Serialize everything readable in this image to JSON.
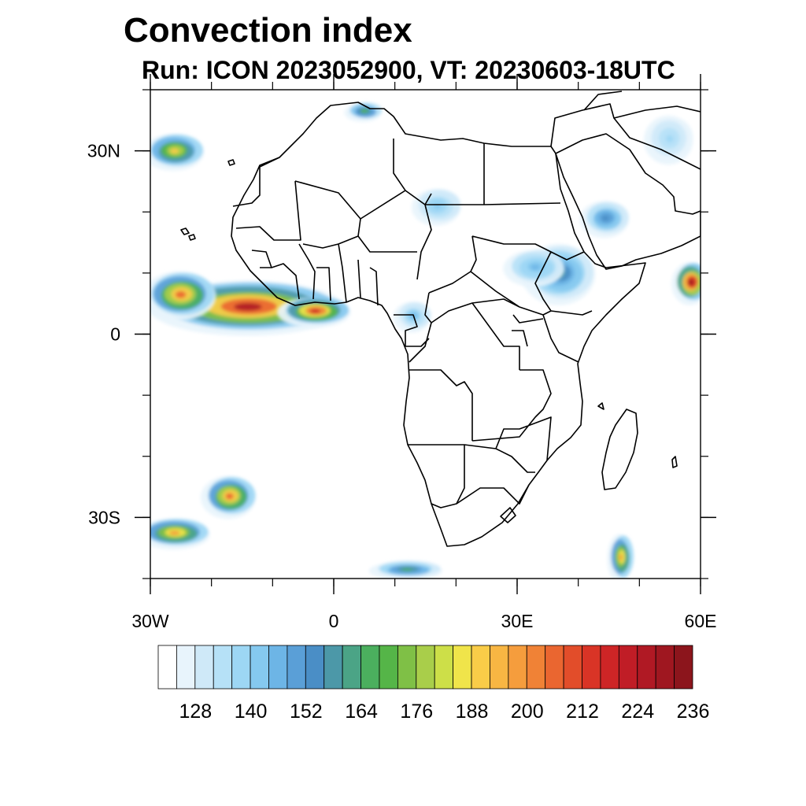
{
  "title": "Convection index",
  "subtitle": "Run: ICON 2023052900,  VT: 20230603-18UTC",
  "map": {
    "projection": "equirectangular",
    "lon_range": [
      -30,
      60
    ],
    "lat_range": [
      -40,
      40
    ],
    "lon_ticks": [
      {
        "value": -30,
        "label": "30W"
      },
      {
        "value": 0,
        "label": "0"
      },
      {
        "value": 30,
        "label": "30E"
      },
      {
        "value": 60,
        "label": "60E"
      }
    ],
    "lat_ticks": [
      {
        "value": 30,
        "label": "30N"
      },
      {
        "value": 0,
        "label": "0"
      },
      {
        "value": -30,
        "label": "30S"
      }
    ],
    "field_blobs": [
      {
        "name": "atlantic-itcz",
        "lon": -14,
        "lat": 4.5,
        "rlon": 16,
        "rlat": 4.5,
        "peak": 200
      },
      {
        "name": "atlantic-itcz-west",
        "lon": -25,
        "lat": 6.5,
        "rlon": 6,
        "rlat": 4,
        "peak": 185
      },
      {
        "name": "gulf-of-guinea",
        "lon": -3,
        "lat": 3.8,
        "rlon": 6,
        "rlat": 2.5,
        "peak": 195
      },
      {
        "name": "canary-region",
        "lon": -26,
        "lat": 30,
        "rlon": 5,
        "rlat": 3,
        "peak": 175
      },
      {
        "name": "south-atlantic-front",
        "lon": -17,
        "lat": -26.5,
        "rlon": 4.5,
        "rlat": 3.5,
        "peak": 185
      },
      {
        "name": "south-atlantic-front-2",
        "lon": -26,
        "lat": -32.5,
        "rlon": 6,
        "rlat": 2.5,
        "peak": 180
      },
      {
        "name": "arabian-sea",
        "lon": 58.5,
        "lat": 8.5,
        "rlon": 3,
        "rlat": 3.5,
        "peak": 205
      },
      {
        "name": "madagascar-south",
        "lon": 47,
        "lat": -36.5,
        "rlon": 2,
        "rlat": 4,
        "peak": 180
      },
      {
        "name": "ethiopian-highlands",
        "lon": 37,
        "lat": 10,
        "rlon": 6,
        "rlat": 5,
        "peak": 150
      },
      {
        "name": "yemen-saudi",
        "lon": 44.5,
        "lat": 19,
        "rlon": 4,
        "rlat": 3,
        "peak": 148
      },
      {
        "name": "sahel-sudan",
        "lon": 33,
        "lat": 11,
        "rlon": 5,
        "rlat": 3,
        "peak": 142
      },
      {
        "name": "sahel-chad",
        "lon": 17,
        "lat": 21,
        "rlon": 4,
        "rlat": 3,
        "peak": 138
      },
      {
        "name": "cameroon",
        "lon": 13,
        "lat": 3,
        "rlon": 3,
        "rlat": 2.5,
        "peak": 140
      },
      {
        "name": "southern-ocean",
        "lon": 12,
        "lat": -38.5,
        "rlon": 6,
        "rlat": 1.5,
        "peak": 155
      },
      {
        "name": "iran",
        "lon": 55,
        "lat": 32,
        "rlon": 4,
        "rlat": 4,
        "peak": 135
      },
      {
        "name": "algeria-north",
        "lon": 5,
        "lat": 36.5,
        "rlon": 3,
        "rlat": 1.5,
        "peak": 160
      }
    ]
  },
  "colorbar": {
    "labels": [
      "128",
      "140",
      "152",
      "164",
      "176",
      "188",
      "200",
      "212",
      "224",
      "236"
    ],
    "label_level_index": [
      1,
      5,
      9,
      13,
      17,
      21,
      25,
      29,
      33,
      37
    ],
    "colors": [
      "#ffffff",
      "#e8f4fc",
      "#cfe9f8",
      "#b6e1f7",
      "#9dd7f4",
      "#85c9ef",
      "#6db5e6",
      "#5a9fd7",
      "#4a8ec6",
      "#4c98a8",
      "#4ba486",
      "#4baf5e",
      "#55b548",
      "#7fc046",
      "#a9ce4a",
      "#cddf48",
      "#f0e44a",
      "#f9cc48",
      "#f8b643",
      "#f59d3d",
      "#f08236",
      "#ea6630",
      "#e24d2a",
      "#d93426",
      "#ce2526",
      "#c01d26",
      "#b01924",
      "#9f1720",
      "#8c151c"
    ]
  }
}
